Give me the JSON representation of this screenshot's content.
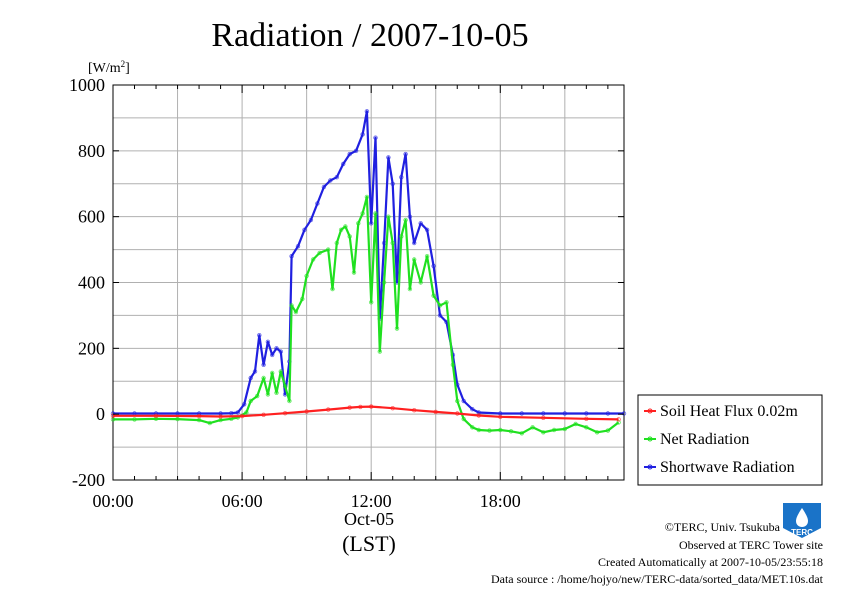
{
  "chart_data": {
    "type": "line",
    "title": "Radiation / 2007-10-05",
    "unit_label": "[W/m",
    "unit_suffix": "2",
    "unit_close": "]",
    "xlabel_date": "Oct-05",
    "xlabel": "(LST)",
    "ylim": [
      -200,
      1000
    ],
    "xlim": [
      0,
      23.75
    ],
    "yticks": [
      -200,
      0,
      200,
      400,
      600,
      800,
      1000
    ],
    "xticks": [
      {
        "value": 0,
        "label": "00:00"
      },
      {
        "value": 6,
        "label": "06:00"
      },
      {
        "value": 12,
        "label": "12:00"
      },
      {
        "value": 18,
        "label": "18:00"
      }
    ],
    "grid": true,
    "legend": "bottom-right",
    "series": [
      {
        "name": "Soil Heat Flux 0.02m",
        "color": "#ff2020",
        "points": [
          [
            0,
            -5
          ],
          [
            2,
            -5
          ],
          [
            4,
            -6
          ],
          [
            5,
            -7
          ],
          [
            6,
            -6
          ],
          [
            7,
            -2
          ],
          [
            8,
            3
          ],
          [
            9,
            8
          ],
          [
            10,
            14
          ],
          [
            11,
            20
          ],
          [
            11.5,
            22
          ],
          [
            12,
            23
          ],
          [
            13,
            18
          ],
          [
            14,
            12
          ],
          [
            15,
            7
          ],
          [
            16,
            2
          ],
          [
            17,
            -4
          ],
          [
            18,
            -8
          ],
          [
            20,
            -11
          ],
          [
            22,
            -14
          ],
          [
            23.5,
            -16
          ]
        ]
      },
      {
        "name": "Net Radiation",
        "color": "#20e020",
        "points": [
          [
            0,
            -16
          ],
          [
            1,
            -16
          ],
          [
            2,
            -14
          ],
          [
            3,
            -15
          ],
          [
            4,
            -18
          ],
          [
            4.5,
            -27
          ],
          [
            5,
            -18
          ],
          [
            5.5,
            -14
          ],
          [
            5.8,
            -10
          ],
          [
            6.2,
            5
          ],
          [
            6.4,
            40
          ],
          [
            6.7,
            55
          ],
          [
            7,
            110
          ],
          [
            7.2,
            60
          ],
          [
            7.4,
            125
          ],
          [
            7.6,
            65
          ],
          [
            7.8,
            130
          ],
          [
            8,
            85
          ],
          [
            8.2,
            40
          ],
          [
            8.3,
            330
          ],
          [
            8.5,
            310
          ],
          [
            8.8,
            350
          ],
          [
            9,
            420
          ],
          [
            9.3,
            470
          ],
          [
            9.6,
            490
          ],
          [
            10,
            500
          ],
          [
            10.2,
            380
          ],
          [
            10.4,
            520
          ],
          [
            10.6,
            560
          ],
          [
            10.8,
            570
          ],
          [
            11,
            540
          ],
          [
            11.2,
            430
          ],
          [
            11.4,
            580
          ],
          [
            11.6,
            610
          ],
          [
            11.8,
            660
          ],
          [
            12,
            340
          ],
          [
            12.2,
            610
          ],
          [
            12.4,
            190
          ],
          [
            12.6,
            400
          ],
          [
            12.8,
            600
          ],
          [
            13,
            520
          ],
          [
            13.2,
            260
          ],
          [
            13.4,
            540
          ],
          [
            13.6,
            590
          ],
          [
            13.8,
            380
          ],
          [
            14,
            470
          ],
          [
            14.3,
            400
          ],
          [
            14.6,
            480
          ],
          [
            14.9,
            360
          ],
          [
            15.2,
            330
          ],
          [
            15.5,
            340
          ],
          [
            15.8,
            150
          ],
          [
            16,
            40
          ],
          [
            16.3,
            -15
          ],
          [
            16.7,
            -40
          ],
          [
            17,
            -48
          ],
          [
            17.5,
            -50
          ],
          [
            18,
            -48
          ],
          [
            18.5,
            -52
          ],
          [
            19,
            -58
          ],
          [
            19.5,
            -40
          ],
          [
            20,
            -55
          ],
          [
            20.5,
            -48
          ],
          [
            21,
            -45
          ],
          [
            21.5,
            -30
          ],
          [
            22,
            -40
          ],
          [
            22.5,
            -55
          ],
          [
            23,
            -50
          ],
          [
            23.5,
            -25
          ]
        ]
      },
      {
        "name": "Shortwave Radiation",
        "color": "#2020e0",
        "points": [
          [
            0,
            2
          ],
          [
            1,
            2
          ],
          [
            2,
            2
          ],
          [
            3,
            2
          ],
          [
            4,
            2
          ],
          [
            5,
            2
          ],
          [
            5.5,
            3
          ],
          [
            5.8,
            5
          ],
          [
            6.1,
            30
          ],
          [
            6.4,
            110
          ],
          [
            6.6,
            130
          ],
          [
            6.8,
            240
          ],
          [
            7,
            150
          ],
          [
            7.2,
            220
          ],
          [
            7.4,
            180
          ],
          [
            7.6,
            200
          ],
          [
            7.8,
            190
          ],
          [
            8,
            60
          ],
          [
            8.2,
            160
          ],
          [
            8.3,
            480
          ],
          [
            8.6,
            510
          ],
          [
            8.9,
            560
          ],
          [
            9.2,
            590
          ],
          [
            9.5,
            640
          ],
          [
            9.8,
            690
          ],
          [
            10.1,
            710
          ],
          [
            10.4,
            720
          ],
          [
            10.7,
            760
          ],
          [
            11,
            790
          ],
          [
            11.3,
            800
          ],
          [
            11.6,
            850
          ],
          [
            11.8,
            920
          ],
          [
            12,
            580
          ],
          [
            12.2,
            840
          ],
          [
            12.4,
            290
          ],
          [
            12.6,
            520
          ],
          [
            12.8,
            780
          ],
          [
            13,
            700
          ],
          [
            13.2,
            400
          ],
          [
            13.4,
            720
          ],
          [
            13.6,
            790
          ],
          [
            13.8,
            600
          ],
          [
            14,
            520
          ],
          [
            14.3,
            580
          ],
          [
            14.6,
            560
          ],
          [
            14.9,
            450
          ],
          [
            15.2,
            300
          ],
          [
            15.5,
            280
          ],
          [
            15.8,
            180
          ],
          [
            16,
            90
          ],
          [
            16.3,
            40
          ],
          [
            16.7,
            15
          ],
          [
            17,
            5
          ],
          [
            18,
            2
          ],
          [
            19,
            2
          ],
          [
            20,
            2
          ],
          [
            21,
            2
          ],
          [
            22,
            2
          ],
          [
            23,
            2
          ],
          [
            23.75,
            2
          ]
        ]
      }
    ]
  },
  "footer": {
    "copyright": "©TERC, Univ. Tsukuba",
    "observed": "Observed at TERC Tower site",
    "created": "Created Automatically at 2007-10-05/23:55:18",
    "source": "Data source : /home/hojyo/new/TERC-data/sorted_data/MET.10s.dat"
  },
  "logo": {
    "text": "TERC",
    "color": "#1a73c8"
  }
}
